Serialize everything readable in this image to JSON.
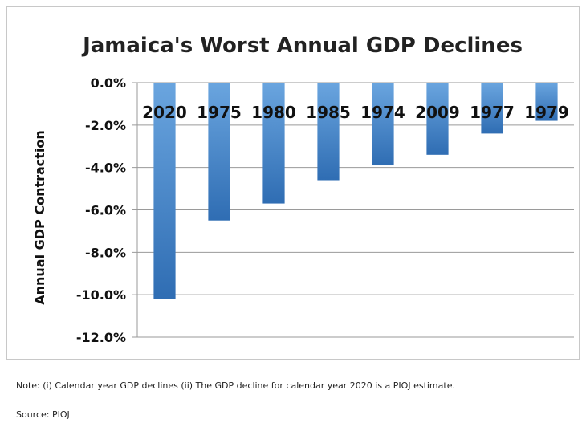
{
  "chart_data": {
    "type": "bar",
    "title": "Jamaica's Worst Annual GDP Declines",
    "ylabel": "Annual GDP Contraction",
    "xlabel": "",
    "categories": [
      "2020",
      "1975",
      "1980",
      "1985",
      "1974",
      "2009",
      "1977",
      "1979"
    ],
    "values": [
      -10.2,
      -6.5,
      -5.7,
      -4.6,
      -3.9,
      -3.4,
      -2.4,
      -1.8
    ],
    "ylim": [
      -12.0,
      0.0
    ],
    "yticks": [
      "0.0%",
      "-2.0%",
      "-4.0%",
      "-6.0%",
      "-8.0%",
      "-10.0%",
      "-12.0%"
    ],
    "ytick_values": [
      0,
      -2,
      -4,
      -6,
      -8,
      -10,
      -12
    ],
    "grid": true,
    "legend": "none",
    "bar_color_top": "#6aa5df",
    "bar_color_bottom": "#2f6db3"
  },
  "notes": {
    "note": "Note: (i) Calendar year GDP declines (ii) The GDP decline for calendar year 2020 is a PIOJ estimate.",
    "source": "Source: PIOJ"
  }
}
